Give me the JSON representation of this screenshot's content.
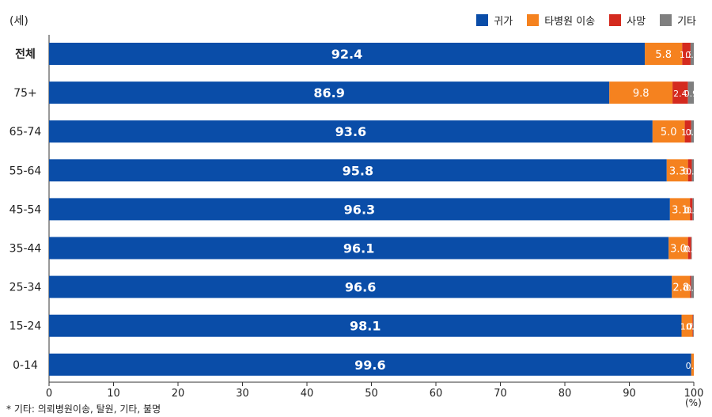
{
  "unit_label": "(세)",
  "x_unit": "(%)",
  "footnote": "* 기타: 의뢰병원이송, 탈원, 기타, 불명",
  "colors": {
    "귀가": "#0a4da8",
    "타병원 이송": "#f5821f",
    "사망": "#d42a1e",
    "기타": "#7f7f7f"
  },
  "chart_data": {
    "type": "bar",
    "orientation": "horizontal",
    "stacked": true,
    "categories": [
      "전체",
      "75+",
      "65-74",
      "55-64",
      "45-54",
      "35-44",
      "25-34",
      "15-24",
      "0-14"
    ],
    "series": [
      {
        "name": "귀가",
        "values": [
          92.4,
          86.9,
          93.6,
          95.8,
          96.3,
          96.1,
          96.6,
          98.1,
          99.6
        ]
      },
      {
        "name": "타병원 이송",
        "values": [
          5.8,
          9.8,
          5.0,
          3.3,
          3.1,
          3.0,
          2.8,
          1.7,
          0.4
        ]
      },
      {
        "name": "사망",
        "values": [
          1.3,
          2.4,
          1.0,
          0.6,
          0.4,
          0.5,
          0.2,
          0.1,
          null
        ]
      },
      {
        "name": "기타",
        "values": [
          0.5,
          0.9,
          0.4,
          0.3,
          0.2,
          0.1,
          0.4,
          0.1,
          null
        ]
      }
    ],
    "xlim": [
      0,
      100
    ],
    "xticks": [
      0,
      10,
      20,
      30,
      40,
      50,
      60,
      70,
      80,
      90,
      100
    ],
    "legend_position": "top-right",
    "grid": false
  }
}
